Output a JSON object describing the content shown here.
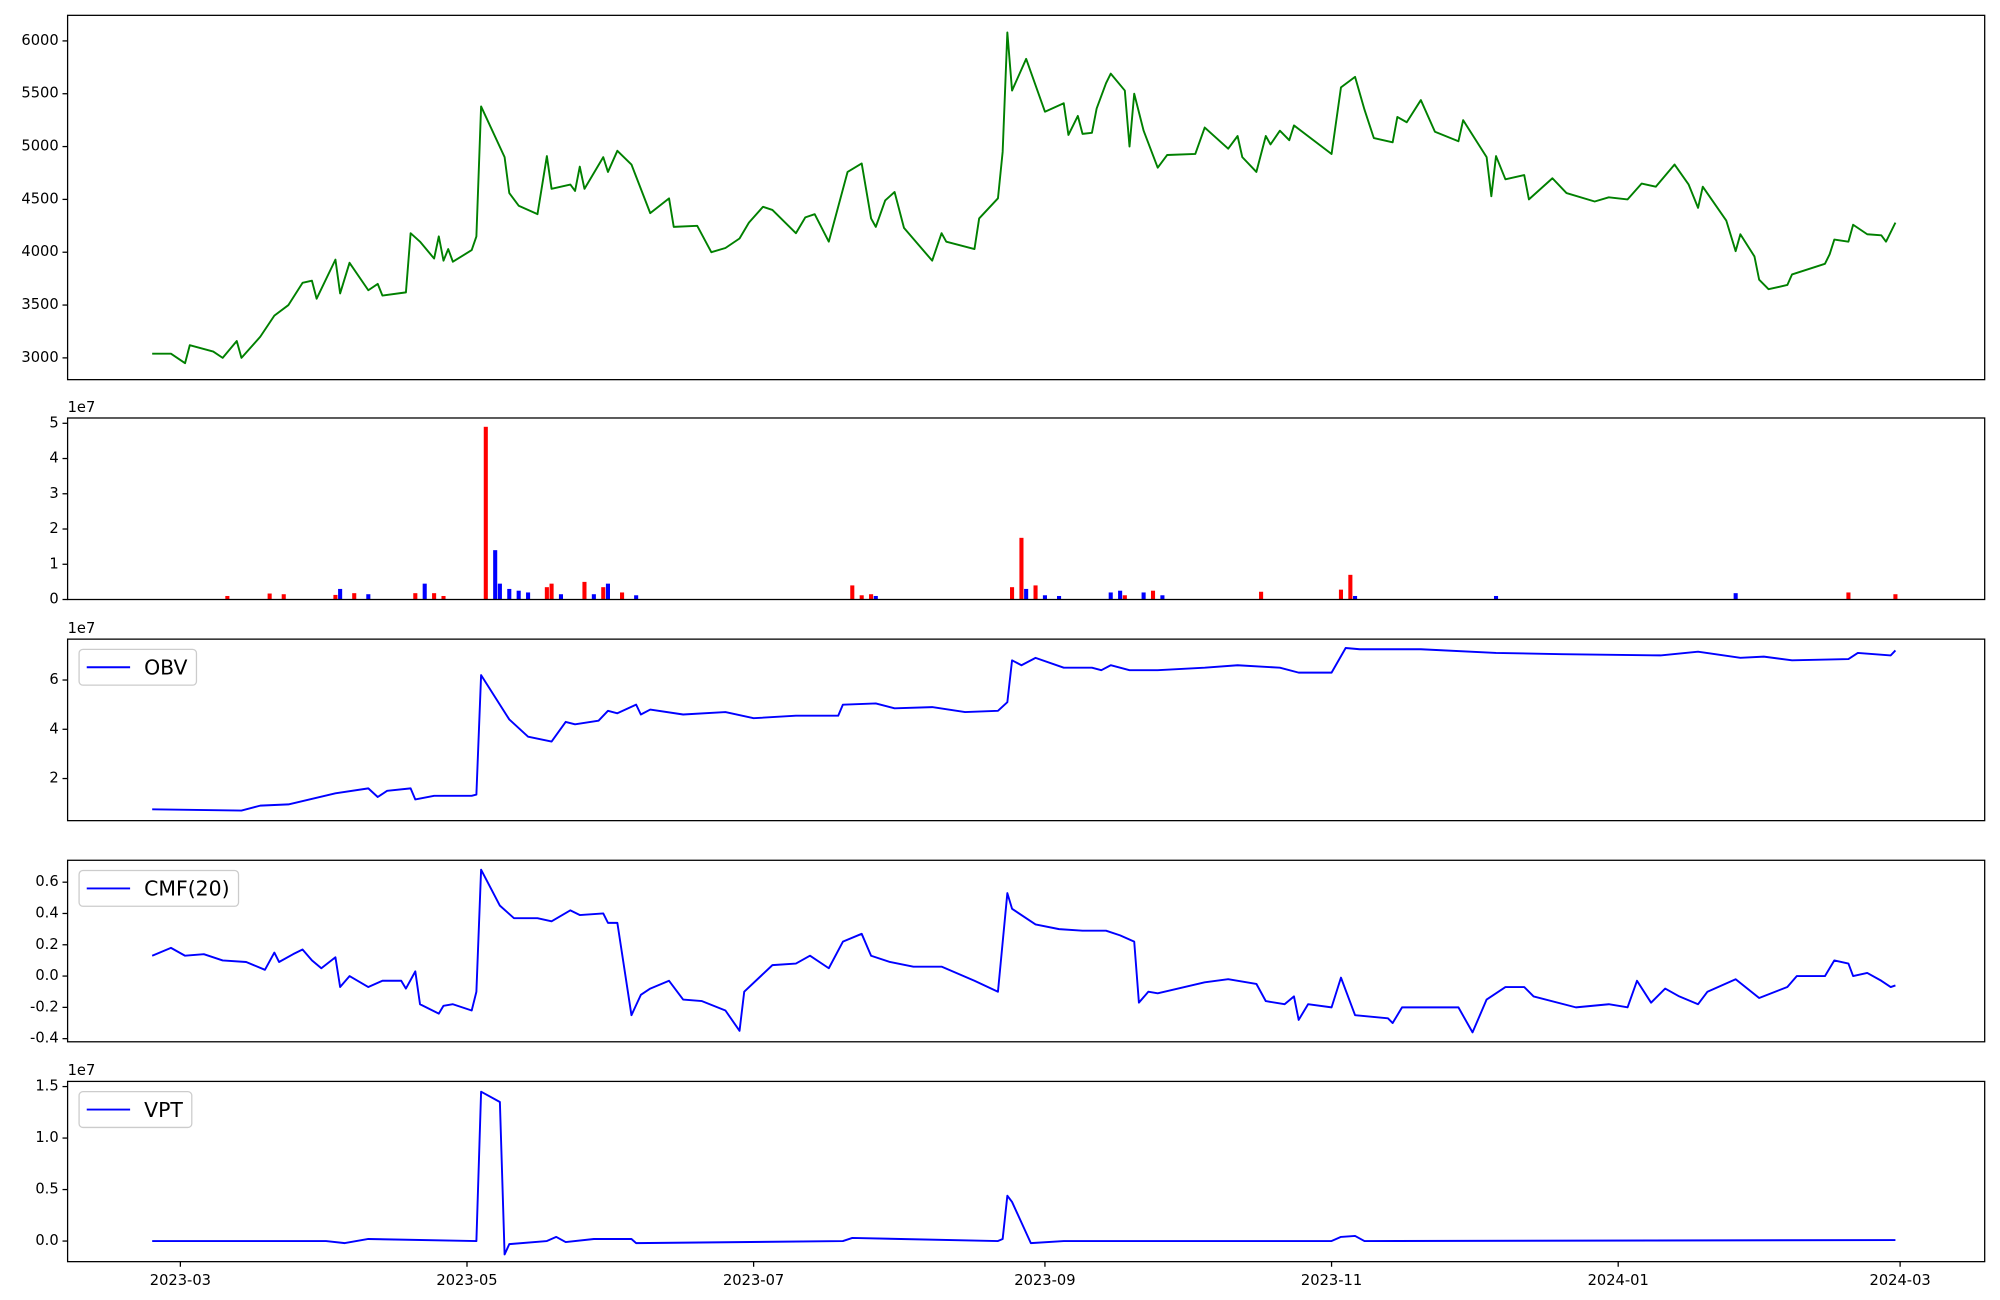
{
  "chart_data": [
    {
      "type": "line",
      "color": "#008000",
      "x": [
        "2023-02-23",
        "2023-02-27",
        "2023-03-02",
        "2023-03-03",
        "2023-03-08",
        "2023-03-10",
        "2023-03-13",
        "2023-03-14",
        "2023-03-18",
        "2023-03-21",
        "2023-03-24",
        "2023-03-27",
        "2023-03-29",
        "2023-03-30",
        "2023-04-03",
        "2023-04-04",
        "2023-04-06",
        "2023-04-10",
        "2023-04-12",
        "2023-04-13",
        "2023-04-18",
        "2023-04-19",
        "2023-04-21",
        "2023-04-24",
        "2023-04-25",
        "2023-04-26",
        "2023-04-27",
        "2023-04-28",
        "2023-05-02",
        "2023-05-03",
        "2023-05-04",
        "2023-05-09",
        "2023-05-10",
        "2023-05-12",
        "2023-05-16",
        "2023-05-18",
        "2023-05-19",
        "2023-05-23",
        "2023-05-24",
        "2023-05-25",
        "2023-05-26",
        "2023-05-30",
        "2023-05-31",
        "2023-06-02",
        "2023-06-05",
        "2023-06-09",
        "2023-06-13",
        "2023-06-14",
        "2023-06-19",
        "2023-06-22",
        "2023-06-25",
        "2023-06-28",
        "2023-06-30",
        "2023-07-03",
        "2023-07-05",
        "2023-07-10",
        "2023-07-12",
        "2023-07-14",
        "2023-07-17",
        "2023-07-21",
        "2023-07-24",
        "2023-07-26",
        "2023-07-27",
        "2023-07-29",
        "2023-07-31",
        "2023-08-02",
        "2023-08-08",
        "2023-08-10",
        "2023-08-11",
        "2023-08-17",
        "2023-08-18",
        "2023-08-22",
        "2023-08-23",
        "2023-08-24",
        "2023-08-25",
        "2023-08-28",
        "2023-09-01",
        "2023-09-05",
        "2023-09-06",
        "2023-09-08",
        "2023-09-09",
        "2023-09-11",
        "2023-09-12",
        "2023-09-14",
        "2023-09-15",
        "2023-09-18",
        "2023-09-19",
        "2023-09-20",
        "2023-09-22",
        "2023-09-25",
        "2023-09-27",
        "2023-10-03",
        "2023-10-05",
        "2023-10-10",
        "2023-10-12",
        "2023-10-13",
        "2023-10-16",
        "2023-10-18",
        "2023-10-19",
        "2023-10-21",
        "2023-10-23",
        "2023-10-24",
        "2023-11-01",
        "2023-11-03",
        "2023-11-06",
        "2023-11-08",
        "2023-11-10",
        "2023-11-14",
        "2023-11-15",
        "2023-11-17",
        "2023-11-20",
        "2023-11-23",
        "2023-11-28",
        "2023-11-29",
        "2023-12-04",
        "2023-12-05",
        "2023-12-06",
        "2023-12-08",
        "2023-12-12",
        "2023-12-13",
        "2023-12-18",
        "2023-12-21",
        "2023-12-27",
        "2023-12-30",
        "2024-01-03",
        "2024-01-06",
        "2024-01-09",
        "2024-01-13",
        "2024-01-16",
        "2024-01-18",
        "2024-01-19",
        "2024-01-24",
        "2024-01-26",
        "2024-01-27",
        "2024-01-30",
        "2024-01-31",
        "2024-02-02",
        "2024-02-06",
        "2024-02-07",
        "2024-02-14",
        "2024-02-15",
        "2024-02-16",
        "2024-02-19",
        "2024-02-20",
        "2024-02-23",
        "2024-02-26",
        "2024-02-27",
        "2024-02-29"
      ],
      "values": [
        3040,
        3040,
        2950,
        3120,
        3060,
        3000,
        3160,
        3000,
        3200,
        3400,
        3500,
        3710,
        3730,
        3560,
        3930,
        3610,
        3900,
        3640,
        3700,
        3590,
        3620,
        4180,
        4100,
        3940,
        4150,
        3920,
        4030,
        3910,
        4020,
        4150,
        5380,
        4900,
        4560,
        4440,
        4360,
        4910,
        4600,
        4640,
        4580,
        4810,
        4600,
        4900,
        4760,
        4960,
        4830,
        4370,
        4510,
        4240,
        4250,
        4000,
        4040,
        4130,
        4280,
        4430,
        4400,
        4180,
        4330,
        4360,
        4100,
        4760,
        4840,
        4320,
        4240,
        4490,
        4570,
        4230,
        3920,
        4180,
        4100,
        4030,
        4320,
        4510,
        4950,
        6080,
        5530,
        5830,
        5330,
        5410,
        5110,
        5290,
        5120,
        5130,
        5360,
        5600,
        5690,
        5530,
        5000,
        5500,
        5150,
        4800,
        4920,
        4930,
        5180,
        4980,
        5100,
        4900,
        4760,
        5100,
        5020,
        5150,
        5060,
        5200,
        4930,
        5560,
        5660,
        5350,
        5080,
        5040,
        5280,
        5230,
        5440,
        5140,
        5050,
        5250,
        4900,
        4530,
        4910,
        4690,
        4730,
        4500,
        4700,
        4560,
        4480,
        4520,
        4500,
        4650,
        4620,
        4830,
        4640,
        4420,
        4620,
        4300,
        4010,
        4170,
        3960,
        3740,
        3650,
        3690,
        3790,
        3890,
        3980,
        4120,
        4100,
        4260,
        4170,
        4160,
        4100,
        4280
      ],
      "xlim": [
        "2023-02-05",
        "2024-03-19"
      ],
      "ylim": [
        2794,
        6242
      ],
      "yticks": [
        3000,
        3500,
        4000,
        4500,
        5000,
        5500,
        6000
      ]
    },
    {
      "type": "bar",
      "offset_text": "1e7",
      "x": [
        "2023-03-11",
        "2023-03-20",
        "2023-03-23",
        "2023-04-03",
        "2023-04-04",
        "2023-04-07",
        "2023-04-10",
        "2023-04-20",
        "2023-04-22",
        "2023-04-24",
        "2023-04-26",
        "2023-05-05",
        "2023-05-07",
        "2023-05-08",
        "2023-05-10",
        "2023-05-12",
        "2023-05-14",
        "2023-05-18",
        "2023-05-19",
        "2023-05-21",
        "2023-05-26",
        "2023-05-28",
        "2023-05-30",
        "2023-05-31",
        "2023-06-03",
        "2023-06-06",
        "2023-07-22",
        "2023-07-24",
        "2023-07-26",
        "2023-07-27",
        "2023-08-25",
        "2023-08-27",
        "2023-08-28",
        "2023-08-30",
        "2023-09-01",
        "2023-09-04",
        "2023-09-15",
        "2023-09-17",
        "2023-09-18",
        "2023-09-22",
        "2023-09-24",
        "2023-09-26",
        "2023-10-17",
        "2023-11-03",
        "2023-11-05",
        "2023-11-06",
        "2023-12-06",
        "2024-01-26",
        "2024-02-19",
        "2024-02-29"
      ],
      "values": [
        0.1,
        0.17,
        0.15,
        0.13,
        0.3,
        0.18,
        0.15,
        0.18,
        0.45,
        0.18,
        0.1,
        4.9,
        1.4,
        0.45,
        0.3,
        0.25,
        0.2,
        0.35,
        0.45,
        0.15,
        0.5,
        0.15,
        0.35,
        0.45,
        0.2,
        0.12,
        0.4,
        0.12,
        0.15,
        0.1,
        0.35,
        1.75,
        0.3,
        0.4,
        0.12,
        0.1,
        0.2,
        0.25,
        0.12,
        0.2,
        0.25,
        0.12,
        0.22,
        0.28,
        0.7,
        0.1,
        0.1,
        0.18,
        0.2,
        0.15
      ],
      "colors": [
        "#ff0000",
        "#ff0000",
        "#ff0000",
        "#ff0000",
        "#0000ff",
        "#ff0000",
        "#0000ff",
        "#ff0000",
        "#0000ff",
        "#ff0000",
        "#ff0000",
        "#ff0000",
        "#0000ff",
        "#0000ff",
        "#0000ff",
        "#0000ff",
        "#0000ff",
        "#ff0000",
        "#ff0000",
        "#0000ff",
        "#ff0000",
        "#0000ff",
        "#ff0000",
        "#0000ff",
        "#ff0000",
        "#0000ff",
        "#ff0000",
        "#ff0000",
        "#ff0000",
        "#0000ff",
        "#ff0000",
        "#ff0000",
        "#0000ff",
        "#ff0000",
        "#0000ff",
        "#0000ff",
        "#0000ff",
        "#0000ff",
        "#ff0000",
        "#0000ff",
        "#ff0000",
        "#0000ff",
        "#ff0000",
        "#ff0000",
        "#ff0000",
        "#0000ff",
        "#0000ff",
        "#0000ff",
        "#ff0000",
        "#ff0000"
      ],
      "xlim": [
        "2023-02-05",
        "2024-03-19"
      ],
      "ylim": [
        0,
        5.15
      ],
      "yticks": [
        0,
        1,
        2,
        3,
        4,
        5
      ]
    },
    {
      "type": "line",
      "offset_text": "1e7",
      "legend": "upper left",
      "x": [
        "2023-02-23",
        "2023-03-14",
        "2023-03-18",
        "2023-03-24",
        "2023-04-03",
        "2023-04-10",
        "2023-04-12",
        "2023-04-14",
        "2023-04-19",
        "2023-04-20",
        "2023-04-24",
        "2023-05-02",
        "2023-05-03",
        "2023-05-04",
        "2023-05-10",
        "2023-05-14",
        "2023-05-19",
        "2023-05-22",
        "2023-05-24",
        "2023-05-29",
        "2023-05-31",
        "2023-06-02",
        "2023-06-06",
        "2023-06-07",
        "2023-06-09",
        "2023-06-16",
        "2023-06-25",
        "2023-07-01",
        "2023-07-10",
        "2023-07-19",
        "2023-07-20",
        "2023-07-27",
        "2023-07-31",
        "2023-08-08",
        "2023-08-15",
        "2023-08-22",
        "2023-08-24",
        "2023-08-25",
        "2023-08-27",
        "2023-08-30",
        "2023-09-05",
        "2023-09-11",
        "2023-09-13",
        "2023-09-15",
        "2023-09-19",
        "2023-09-25",
        "2023-10-05",
        "2023-10-12",
        "2023-10-21",
        "2023-10-25",
        "2023-11-01",
        "2023-11-04",
        "2023-11-07",
        "2023-11-20",
        "2023-12-06",
        "2023-12-20",
        "2024-01-10",
        "2024-01-18",
        "2024-01-27",
        "2024-02-01",
        "2024-02-07",
        "2024-02-19",
        "2024-02-21",
        "2024-02-28",
        "2024-02-29"
      ],
      "series": [
        {
          "name": "OBV",
          "color": "#0000ff",
          "values": [
            0.75,
            0.7,
            0.9,
            0.95,
            1.4,
            1.6,
            1.25,
            1.5,
            1.6,
            1.15,
            1.3,
            1.3,
            1.35,
            6.2,
            4.4,
            3.7,
            3.5,
            4.3,
            4.2,
            4.35,
            4.75,
            4.65,
            5.0,
            4.6,
            4.8,
            4.6,
            4.7,
            4.45,
            4.55,
            4.55,
            5.0,
            5.05,
            4.85,
            4.9,
            4.7,
            4.75,
            5.1,
            6.8,
            6.6,
            6.9,
            6.5,
            6.5,
            6.4,
            6.6,
            6.4,
            6.4,
            6.5,
            6.6,
            6.5,
            6.3,
            6.3,
            7.3,
            7.25,
            7.25,
            7.1,
            7.05,
            7.0,
            7.15,
            6.9,
            6.95,
            6.8,
            6.85,
            7.1,
            7.0,
            7.2
          ]
        }
      ],
      "xlim": [
        "2023-02-05",
        "2024-03-19"
      ],
      "ylim": [
        0.29,
        7.66
      ],
      "yticks": [
        2,
        4,
        6
      ]
    },
    {
      "type": "line",
      "legend": "upper left",
      "x": [
        "2023-02-23",
        "2023-02-27",
        "2023-03-02",
        "2023-03-06",
        "2023-03-10",
        "2023-03-15",
        "2023-03-19",
        "2023-03-21",
        "2023-03-22",
        "2023-03-25",
        "2023-03-27",
        "2023-03-29",
        "2023-03-31",
        "2023-04-03",
        "2023-04-04",
        "2023-04-06",
        "2023-04-10",
        "2023-04-13",
        "2023-04-17",
        "2023-04-18",
        "2023-04-20",
        "2023-04-21",
        "2023-04-25",
        "2023-04-26",
        "2023-04-28",
        "2023-05-02",
        "2023-05-03",
        "2023-05-04",
        "2023-05-08",
        "2023-05-11",
        "2023-05-16",
        "2023-05-19",
        "2023-05-23",
        "2023-05-25",
        "2023-05-30",
        "2023-05-31",
        "2023-06-02",
        "2023-06-05",
        "2023-06-07",
        "2023-06-09",
        "2023-06-13",
        "2023-06-16",
        "2023-06-20",
        "2023-06-25",
        "2023-06-28",
        "2023-06-29",
        "2023-07-05",
        "2023-07-10",
        "2023-07-13",
        "2023-07-17",
        "2023-07-20",
        "2023-07-24",
        "2023-07-26",
        "2023-07-30",
        "2023-08-04",
        "2023-08-10",
        "2023-08-17",
        "2023-08-22",
        "2023-08-24",
        "2023-08-25",
        "2023-08-30",
        "2023-09-04",
        "2023-09-09",
        "2023-09-14",
        "2023-09-17",
        "2023-09-20",
        "2023-09-21",
        "2023-09-23",
        "2023-09-25",
        "2023-10-05",
        "2023-10-10",
        "2023-10-16",
        "2023-10-18",
        "2023-10-22",
        "2023-10-24",
        "2023-10-25",
        "2023-10-27",
        "2023-11-01",
        "2023-11-03",
        "2023-11-06",
        "2023-11-13",
        "2023-11-14",
        "2023-11-16",
        "2023-11-20",
        "2023-11-28",
        "2023-12-01",
        "2023-12-04",
        "2023-12-08",
        "2023-12-12",
        "2023-12-14",
        "2023-12-23",
        "2023-12-30",
        "2024-01-03",
        "2024-01-05",
        "2024-01-08",
        "2024-01-11",
        "2024-01-14",
        "2024-01-18",
        "2024-01-20",
        "2024-01-26",
        "2024-01-31",
        "2024-02-06",
        "2024-02-08",
        "2024-02-14",
        "2024-02-16",
        "2024-02-19",
        "2024-02-20",
        "2024-02-23",
        "2024-02-26",
        "2024-02-28",
        "2024-02-29"
      ],
      "series": [
        {
          "name": "CMF(20)",
          "color": "#0000ff",
          "values": [
            0.13,
            0.18,
            0.13,
            0.14,
            0.1,
            0.09,
            0.04,
            0.15,
            0.09,
            0.14,
            0.17,
            0.1,
            0.05,
            0.12,
            -0.07,
            0.0,
            -0.07,
            -0.03,
            -0.03,
            -0.08,
            0.03,
            -0.18,
            -0.24,
            -0.19,
            -0.18,
            -0.22,
            -0.1,
            0.68,
            0.45,
            0.37,
            0.37,
            0.35,
            0.42,
            0.39,
            0.4,
            0.34,
            0.34,
            -0.25,
            -0.12,
            -0.08,
            -0.03,
            -0.15,
            -0.16,
            -0.22,
            -0.35,
            -0.1,
            0.07,
            0.08,
            0.13,
            0.05,
            0.22,
            0.27,
            0.13,
            0.09,
            0.06,
            0.06,
            -0.03,
            -0.1,
            0.53,
            0.43,
            0.33,
            0.3,
            0.29,
            0.29,
            0.26,
            0.22,
            -0.17,
            -0.1,
            -0.11,
            -0.04,
            -0.02,
            -0.05,
            -0.16,
            -0.18,
            -0.13,
            -0.28,
            -0.18,
            -0.2,
            -0.01,
            -0.25,
            -0.27,
            -0.3,
            -0.2,
            -0.2,
            -0.2,
            -0.36,
            -0.15,
            -0.07,
            -0.07,
            -0.13,
            -0.2,
            -0.18,
            -0.2,
            -0.03,
            -0.17,
            -0.08,
            -0.13,
            -0.18,
            -0.1,
            -0.02,
            -0.14,
            -0.07,
            0.0,
            0.0,
            0.1,
            0.08,
            0.0,
            0.02,
            -0.03,
            -0.07,
            -0.06
          ]
        }
      ],
      "xlim": [
        "2023-02-05",
        "2024-03-19"
      ],
      "ylim": [
        -0.42,
        0.74
      ],
      "yticks": [
        -0.4,
        -0.2,
        {
          "value": 0,
          "label": "0.0"
        },
        0.2,
        0.4,
        0.6
      ]
    },
    {
      "type": "line",
      "offset_text": "1e7",
      "legend": "upper left",
      "x": [
        "2023-02-23",
        "2023-04-01",
        "2023-04-05",
        "2023-04-10",
        "2023-05-03",
        "2023-05-04",
        "2023-05-08",
        "2023-05-09",
        "2023-05-10",
        "2023-05-18",
        "2023-05-20",
        "2023-05-22",
        "2023-05-28",
        "2023-06-05",
        "2023-06-06",
        "2023-07-20",
        "2023-07-22",
        "2023-08-22",
        "2023-08-23",
        "2023-08-24",
        "2023-08-25",
        "2023-08-29",
        "2023-09-05",
        "2023-11-01",
        "2023-11-03",
        "2023-11-06",
        "2023-11-08",
        "2024-02-29"
      ],
      "series": [
        {
          "name": "VPT",
          "color": "#0000ff",
          "values": [
            0.0,
            0.0,
            -0.02,
            0.02,
            0.0,
            1.45,
            1.35,
            -0.13,
            -0.03,
            0.0,
            0.04,
            -0.01,
            0.02,
            0.02,
            -0.02,
            0.0,
            0.03,
            0.0,
            0.02,
            0.44,
            0.38,
            -0.02,
            0.0,
            0.0,
            0.04,
            0.05,
            0.0,
            0.01
          ]
        }
      ],
      "xlim": [
        "2023-02-05",
        "2024-03-19"
      ],
      "ylim": [
        -0.2,
        1.55
      ],
      "yticks": [
        {
          "value": 0,
          "label": "0.0"
        },
        0.5,
        {
          "value": 1,
          "label": "1.0"
        },
        1.5
      ],
      "xticks": [
        {
          "value": "2023-03-01",
          "label": "2023-03"
        },
        {
          "value": "2023-05-01",
          "label": "2023-05"
        },
        {
          "value": "2023-07-01",
          "label": "2023-07"
        },
        {
          "value": "2023-09-01",
          "label": "2023-09"
        },
        {
          "value": "2023-11-01",
          "label": "2023-11"
        },
        {
          "value": "2024-01-01",
          "label": "2024-01"
        },
        {
          "value": "2024-03-01",
          "label": "2024-03"
        }
      ]
    }
  ]
}
